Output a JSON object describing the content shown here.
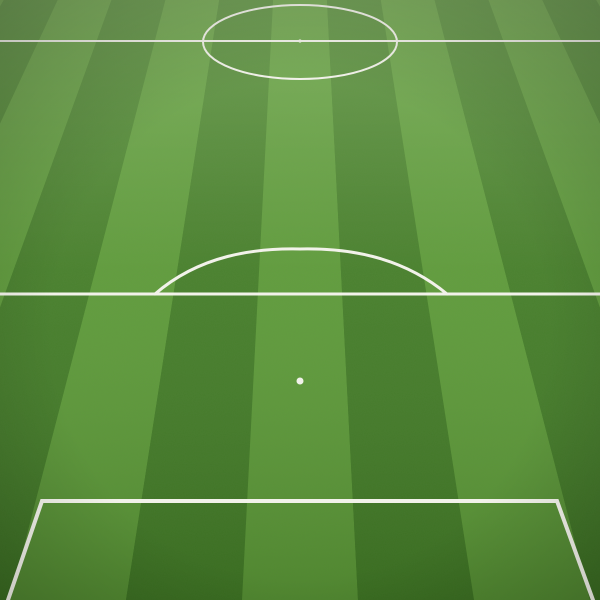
{
  "scene": {
    "view": "perspective-soccer-pitch",
    "surface": "grass",
    "stripe_pattern": "alternating-light-dark",
    "visible_markings": [
      "center-circle",
      "halfway-line",
      "center-spot",
      "penalty-arc",
      "penalty-spot",
      "penalty-box"
    ]
  },
  "colors": {
    "grass_light": "#5a9a34",
    "grass_dark": "#3f7a22",
    "grass_far_light": "#78b04d",
    "grass_far_dark": "#5d9638",
    "line": "#f2f2ea",
    "shadow": "#1f3f12"
  }
}
